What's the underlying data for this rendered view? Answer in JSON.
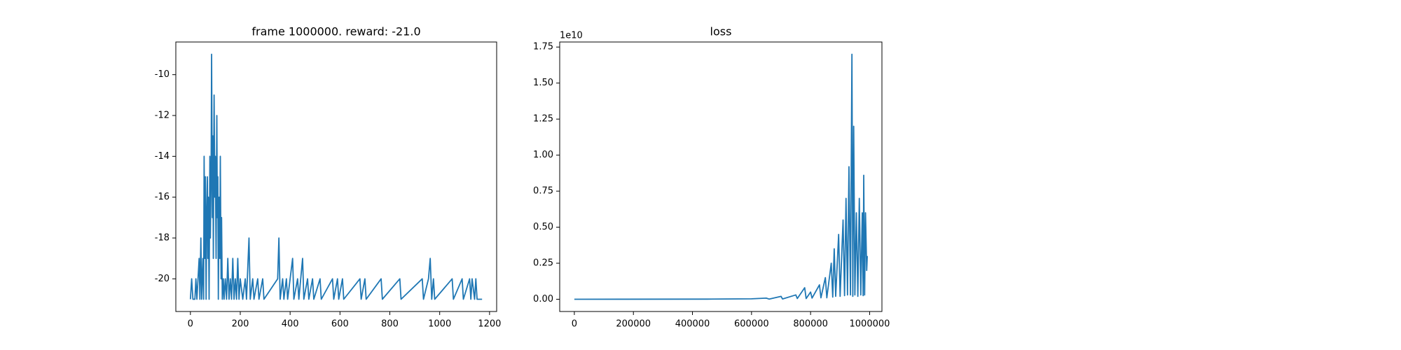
{
  "chart_data": [
    {
      "type": "line",
      "title": "frame 1000000. reward: -21.0",
      "color": "#1f77b4",
      "x": [
        0,
        5,
        10,
        18,
        22,
        26,
        35,
        38,
        42,
        45,
        50,
        53,
        55,
        58,
        60,
        63,
        65,
        68,
        70,
        72,
        75,
        78,
        80,
        83,
        85,
        88,
        90,
        92,
        95,
        98,
        100,
        103,
        106,
        108,
        110,
        112,
        115,
        118,
        120,
        123,
        125,
        128,
        132,
        135,
        140,
        145,
        150,
        155,
        160,
        165,
        170,
        175,
        180,
        185,
        190,
        195,
        200,
        210,
        220,
        225,
        235,
        240,
        250,
        255,
        270,
        275,
        290,
        295,
        350,
        355,
        360,
        370,
        375,
        385,
        390,
        410,
        415,
        430,
        435,
        450,
        455,
        470,
        475,
        490,
        495,
        520,
        525,
        570,
        575,
        590,
        595,
        610,
        615,
        680,
        685,
        700,
        705,
        765,
        770,
        840,
        845,
        930,
        935,
        955,
        962,
        968,
        975,
        980,
        1050,
        1055,
        1090,
        1095,
        1120,
        1125,
        1130,
        1140,
        1145,
        1150,
        1170
      ],
      "values": [
        -21,
        -20,
        -21,
        -21,
        -20,
        -21,
        -19,
        -21,
        -18,
        -21,
        -19,
        -21,
        -14,
        -19,
        -15,
        -21,
        -17,
        -15,
        -19,
        -16,
        -21,
        -14,
        -18,
        -15,
        -9,
        -17,
        -13,
        -19,
        -11,
        -16,
        -14,
        -19,
        -12,
        -17,
        -15,
        -21,
        -16,
        -19,
        -14,
        -20,
        -17,
        -21,
        -20,
        -21,
        -20,
        -21,
        -19,
        -21,
        -20,
        -21,
        -19,
        -21,
        -20,
        -21,
        -19,
        -21,
        -20,
        -21,
        -20,
        -21,
        -18,
        -21,
        -20,
        -21,
        -20,
        -21,
        -20,
        -21,
        -20,
        -18,
        -21,
        -20,
        -21,
        -20,
        -21,
        -19,
        -21,
        -20,
        -21,
        -19,
        -21,
        -20,
        -21,
        -20,
        -21,
        -20,
        -21,
        -20,
        -21,
        -20,
        -21,
        -20,
        -21,
        -20,
        -21,
        -20,
        -21,
        -20,
        -21,
        -20,
        -21,
        -20,
        -21,
        -20,
        -19,
        -21,
        -20,
        -21,
        -20,
        -21,
        -20,
        -21,
        -20,
        -21,
        -20,
        -21,
        -20,
        -21,
        -21
      ],
      "xlim": [
        -58.5,
        1228.5
      ],
      "xticks": [
        0,
        200,
        400,
        600,
        800,
        1000,
        1200
      ],
      "ylim": [
        -21.6,
        -8.4
      ],
      "yticks": [
        -20,
        -18,
        -16,
        -14,
        -12,
        -10
      ]
    },
    {
      "type": "line",
      "title": "loss",
      "color": "#1f77b4",
      "y_offset_text": "1e10",
      "x": [
        0,
        450000,
        600000,
        650000,
        660000,
        700000,
        705000,
        750000,
        755000,
        780000,
        785000,
        800000,
        805000,
        830000,
        835000,
        850000,
        855000,
        870000,
        875000,
        880000,
        885000,
        895000,
        900000,
        910000,
        915000,
        920000,
        925000,
        930000,
        935000,
        940000,
        943000,
        946000,
        950000,
        955000,
        960000,
        965000,
        970000,
        975000,
        978000,
        980000,
        983000,
        986000,
        990000,
        992000
      ],
      "values": [
        0,
        10000000.0,
        30000000.0,
        80000000.0,
        10000000.0,
        200000000.0,
        20000000.0,
        300000000.0,
        50000000.0,
        800000000.0,
        50000000.0,
        500000000.0,
        80000000.0,
        1000000000.0,
        100000000.0,
        1500000000.0,
        100000000.0,
        2500000000.0,
        150000000.0,
        3500000000.0,
        200000000.0,
        4500000000.0,
        200000000.0,
        5500000000.0,
        250000000.0,
        7000000000.0,
        300000000.0,
        9200000000.0,
        300000000.0,
        17000000000.0,
        200000000.0,
        12000000000.0,
        300000000.0,
        6000000000.0,
        200000000.0,
        7000000000.0,
        300000000.0,
        6000000000.0,
        250000000.0,
        8600000000.0,
        300000000.0,
        6000000000.0,
        2000000000.0,
        3000000000.0
      ],
      "xlim": [
        -49600,
        1041600
      ],
      "xticks": [
        0,
        200000,
        400000,
        600000,
        800000,
        1000000
      ],
      "ylim": [
        -850000000,
        17850000000
      ],
      "yticks": [
        {
          "value": 0,
          "label": "0.00"
        },
        {
          "value": 2500000000,
          "label": "0.25"
        },
        {
          "value": 5000000000,
          "label": "0.50"
        },
        {
          "value": 7500000000,
          "label": "0.75"
        },
        {
          "value": 10000000000,
          "label": "1.00"
        },
        {
          "value": 12500000000,
          "label": "1.25"
        },
        {
          "value": 15000000000,
          "label": "1.50"
        },
        {
          "value": 17500000000,
          "label": "1.75"
        }
      ]
    }
  ]
}
